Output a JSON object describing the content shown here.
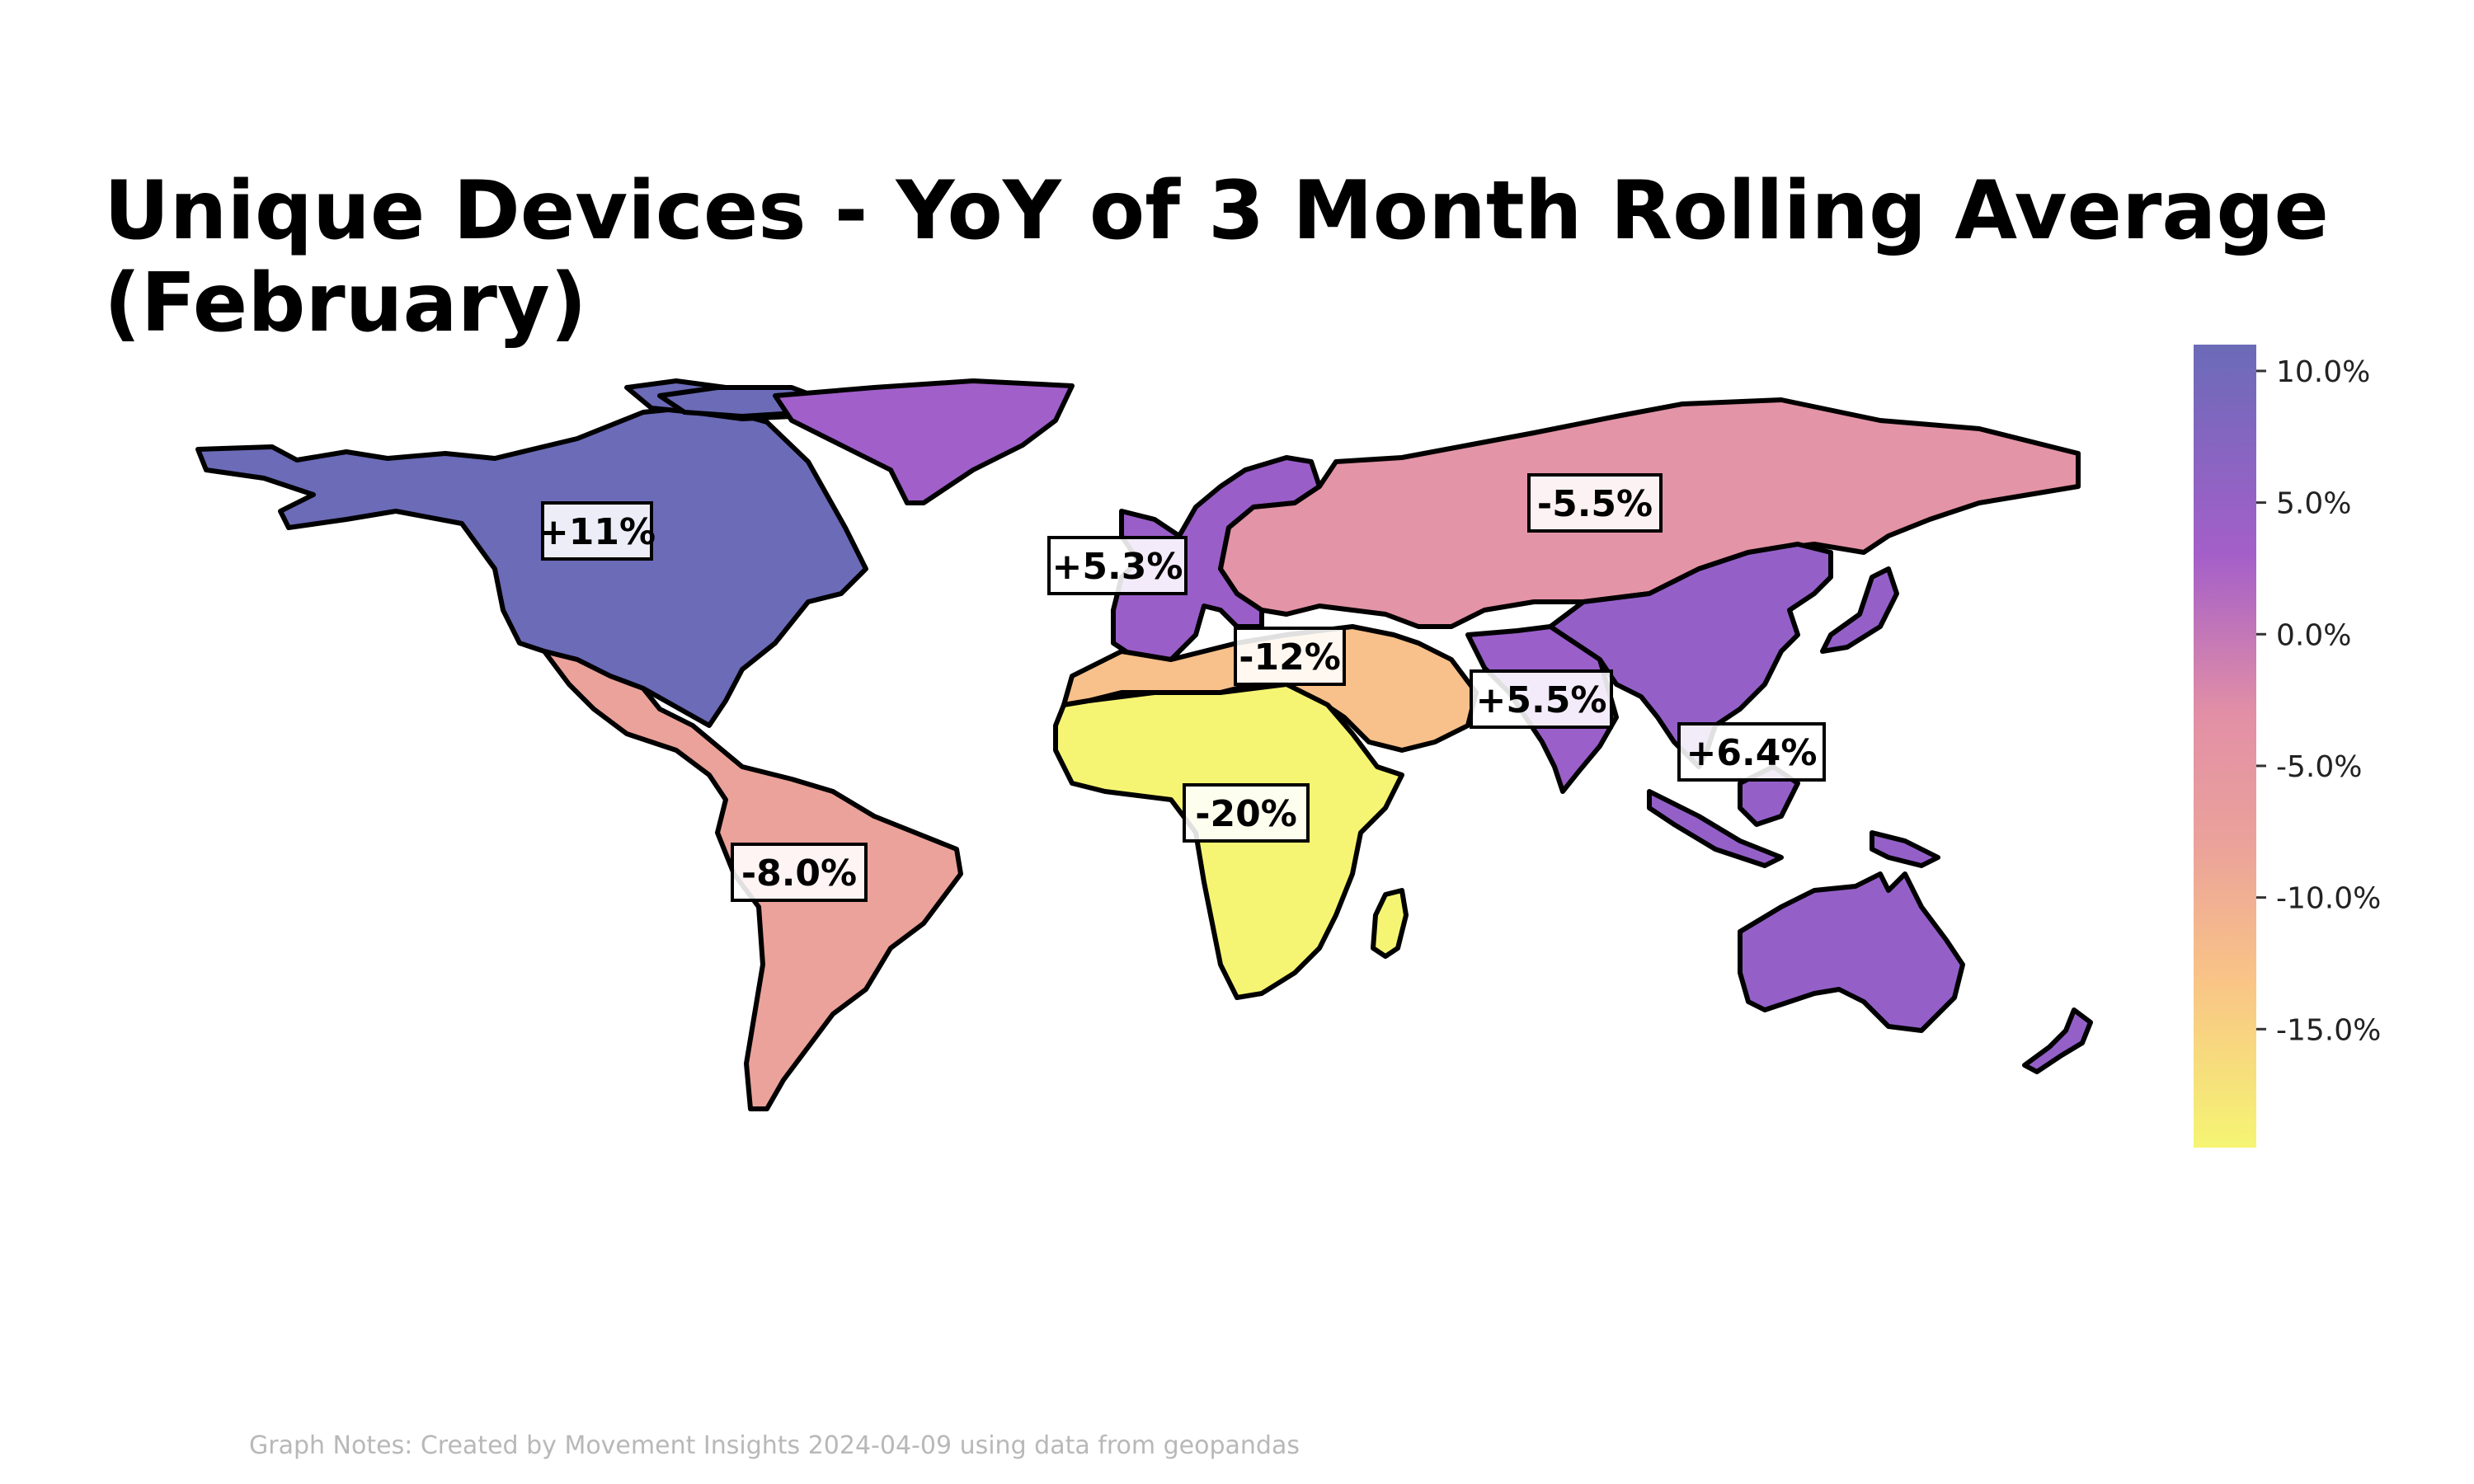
{
  "title": "Unique Devices - YoY of 3 Month Rolling Average (February)",
  "note": "Graph Notes: Created by Movement Insights 2024-04-09 using data from geopandas",
  "colorbar": {
    "min": -19.5,
    "max": 11.0,
    "ticks": [
      {
        "value": 10.0,
        "label": "10.0%"
      },
      {
        "value": 5.0,
        "label": "5.0%"
      },
      {
        "value": 0.0,
        "label": "0.0%"
      },
      {
        "value": -5.0,
        "label": "-5.0%"
      },
      {
        "value": -10.0,
        "label": "-10.0%"
      },
      {
        "value": -15.0,
        "label": "-15.0%"
      }
    ],
    "stops": [
      {
        "value": -19.5,
        "color": "#f5f573"
      },
      {
        "value": -13.0,
        "color": "#f9c387"
      },
      {
        "value": -8.0,
        "color": "#eba29a"
      },
      {
        "value": -3.0,
        "color": "#e28fa6"
      },
      {
        "value": 3.0,
        "color": "#a45fc9"
      },
      {
        "value": 11.0,
        "color": "#6b6bb8"
      }
    ]
  },
  "regions": [
    {
      "id": "north-america",
      "value": 11.0,
      "label": "+11%",
      "color": "#6b6bb8"
    },
    {
      "id": "greenland",
      "value": 5.0,
      "label": "",
      "color": "#a15fc9"
    },
    {
      "id": "latin-america",
      "value": -8.0,
      "label": "-8.0%",
      "color": "#eba29a"
    },
    {
      "id": "europe",
      "value": 5.3,
      "label": "+5.3%",
      "color": "#9a5ec8"
    },
    {
      "id": "russia-central-asia",
      "value": -5.5,
      "label": "-5.5%",
      "color": "#e394a6"
    },
    {
      "id": "middle-east-north-africa",
      "value": -12.0,
      "label": "-12%",
      "color": "#f8c08a"
    },
    {
      "id": "sub-saharan-africa",
      "value": -20.0,
      "label": "-20%",
      "color": "#f5f573"
    },
    {
      "id": "south-asia",
      "value": 5.5,
      "label": "+5.5%",
      "color": "#9a5fc9"
    },
    {
      "id": "east-southeast-asia",
      "value": 6.4,
      "label": "+6.4%",
      "color": "#9460c8"
    },
    {
      "id": "oceania",
      "value": 6.4,
      "label": "",
      "color": "#9460c8"
    }
  ]
}
